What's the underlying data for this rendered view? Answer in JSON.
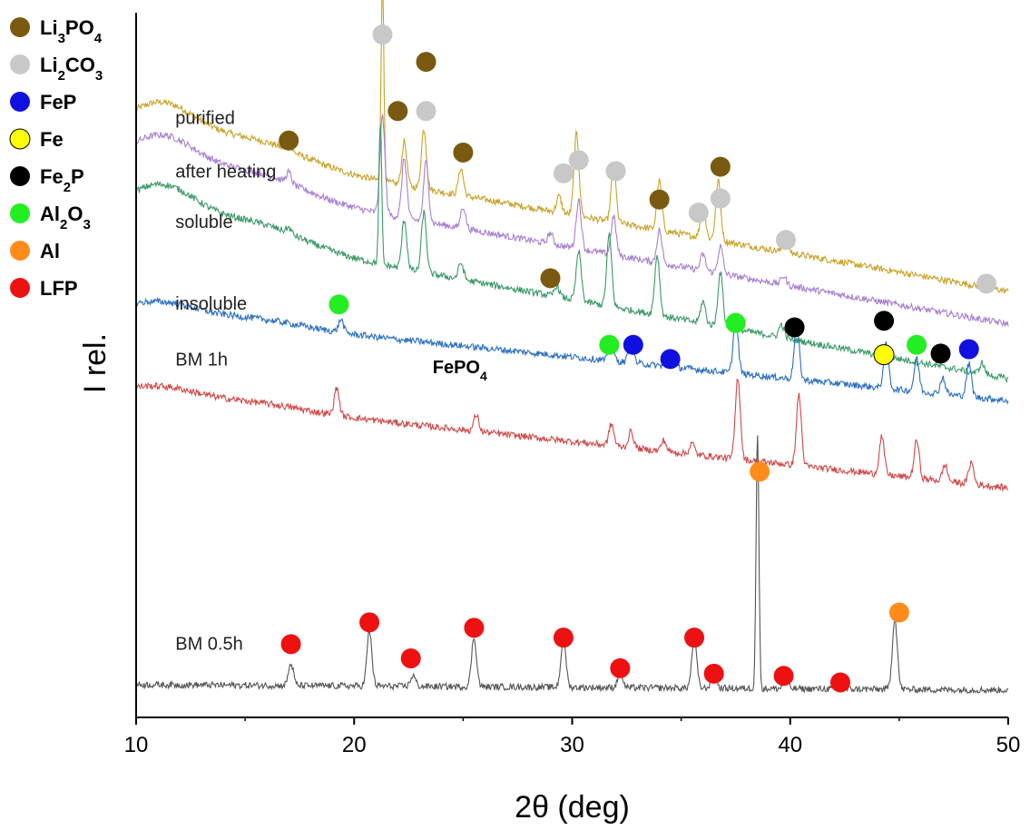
{
  "chart_data": {
    "type": "line",
    "title": "",
    "xlabel": "2θ (deg)",
    "ylabel": "I rel.",
    "xlim": [
      10,
      50
    ],
    "x_ticks": [
      10,
      20,
      30,
      40,
      50
    ],
    "y_ticks_shown": false,
    "grid": false,
    "legend_position": "top-left outside",
    "legend": [
      {
        "key": "Li3PO4",
        "base": "Li",
        "sub1": "3",
        "mid": "PO",
        "sub2": "4",
        "color": "#7a5a10"
      },
      {
        "key": "Li2CO3",
        "base": "Li",
        "sub1": "2",
        "mid": "CO",
        "sub2": "3",
        "color": "#c8c8c8"
      },
      {
        "key": "FeP",
        "base": "FeP",
        "sub1": "",
        "mid": "",
        "sub2": "",
        "color": "#1010e0"
      },
      {
        "key": "Fe",
        "base": "Fe",
        "sub1": "",
        "mid": "",
        "sub2": "",
        "color": "#ffff00"
      },
      {
        "key": "Fe2P",
        "base": "Fe",
        "sub1": "2",
        "mid": "P",
        "sub2": "",
        "color": "#000000"
      },
      {
        "key": "Al2O3",
        "base": "Al",
        "sub1": "2",
        "mid": "O",
        "sub2": "3",
        "color": "#22ee22"
      },
      {
        "key": "Al",
        "base": "Al",
        "sub1": "",
        "mid": "",
        "sub2": "",
        "color": "#ff8c1a"
      },
      {
        "key": "LFP",
        "base": "LFP",
        "sub1": "",
        "mid": "",
        "sub2": "",
        "color": "#ee1111"
      }
    ],
    "series": [
      {
        "name": "purified",
        "color": "#c9a227",
        "baseline": [
          1.6,
          0.2
        ],
        "hump": 0.35,
        "peaks": [
          [
            17.0,
            0.05
          ],
          [
            21.3,
            1.85
          ],
          [
            22.3,
            0.4
          ],
          [
            23.2,
            0.55
          ],
          [
            24.9,
            0.25
          ],
          [
            29.4,
            0.15
          ],
          [
            30.2,
            0.75
          ],
          [
            31.9,
            0.5
          ],
          [
            34.0,
            0.45
          ],
          [
            36.0,
            0.3
          ],
          [
            36.7,
            0.55
          ],
          [
            39.8,
            0.15
          ],
          [
            49.0,
            0.1
          ]
        ]
      },
      {
        "name": "after heating",
        "color": "#a97fd0",
        "baseline": [
          1.3,
          -0.1
        ],
        "hump": 0.35,
        "peaks": [
          [
            17.0,
            0.1
          ],
          [
            21.3,
            0.9
          ],
          [
            22.3,
            0.55
          ],
          [
            23.3,
            0.55
          ],
          [
            25.0,
            0.2
          ],
          [
            29.0,
            0.1
          ],
          [
            30.3,
            0.45
          ],
          [
            31.9,
            0.35
          ],
          [
            34.0,
            0.3
          ],
          [
            36.0,
            0.15
          ],
          [
            36.8,
            0.25
          ],
          [
            39.7,
            0.08
          ]
        ]
      },
      {
        "name": "soluble",
        "color": "#3a9a66",
        "baseline": [
          0.85,
          -0.6
        ],
        "hump": 0.35,
        "peaks": [
          [
            17.0,
            0.05
          ],
          [
            21.2,
            1.3
          ],
          [
            22.3,
            0.45
          ],
          [
            23.2,
            0.55
          ],
          [
            24.9,
            0.15
          ],
          [
            29.3,
            0.1
          ],
          [
            30.3,
            0.45
          ],
          [
            31.7,
            0.65
          ],
          [
            33.9,
            0.55
          ],
          [
            36.0,
            0.2
          ],
          [
            36.8,
            0.5
          ],
          [
            39.6,
            0.12
          ],
          [
            48.8,
            0.1
          ]
        ]
      },
      {
        "name": "insoluble",
        "color": "#2a6fc0",
        "baseline": [
          0.0,
          -0.8
        ],
        "hump": 0.12,
        "peaks": [
          [
            19.4,
            0.12
          ],
          [
            31.8,
            0.15
          ],
          [
            32.7,
            0.2
          ],
          [
            34.5,
            0.1
          ],
          [
            37.5,
            0.5
          ],
          [
            40.3,
            0.5
          ],
          [
            44.4,
            0.4
          ],
          [
            45.8,
            0.3
          ],
          [
            47.0,
            0.15
          ],
          [
            48.2,
            0.3
          ]
        ]
      },
      {
        "name": "BM 1h",
        "color": "#d04848",
        "baseline": [
          -0.75,
          -1.6
        ],
        "hump": 0.1,
        "peaks": [
          [
            19.2,
            0.25
          ],
          [
            25.6,
            0.15
          ],
          [
            31.8,
            0.2
          ],
          [
            32.7,
            0.15
          ],
          [
            34.2,
            0.1
          ],
          [
            35.5,
            0.1
          ],
          [
            37.6,
            0.75
          ],
          [
            40.4,
            0.65
          ],
          [
            44.2,
            0.35
          ],
          [
            45.8,
            0.35
          ],
          [
            47.1,
            0.15
          ],
          [
            48.3,
            0.2
          ]
        ]
      },
      {
        "name": "BM 0.5h",
        "color": "#555555",
        "baseline": [
          -3.4,
          -3.45
        ],
        "hump": 0.0,
        "peaks": [
          [
            17.1,
            0.2
          ],
          [
            20.7,
            0.5
          ],
          [
            22.7,
            0.1
          ],
          [
            25.5,
            0.45
          ],
          [
            29.6,
            0.45
          ],
          [
            32.2,
            0.15
          ],
          [
            35.6,
            0.45
          ],
          [
            36.5,
            0.15
          ],
          [
            38.5,
            2.35
          ],
          [
            39.8,
            0.08
          ],
          [
            42.3,
            0.08
          ],
          [
            44.8,
            0.65
          ]
        ]
      }
    ],
    "series_labels": [
      {
        "series": "purified",
        "x": 11.8,
        "y": 1.73
      },
      {
        "series": "after heating",
        "x": 11.8,
        "y": 1.24
      },
      {
        "series": "soluble",
        "x": 11.8,
        "y": 0.78
      },
      {
        "series": "insoluble",
        "x": 11.8,
        "y": 0.03
      },
      {
        "series": "BM 1h",
        "x": 11.8,
        "y": -0.48
      },
      {
        "series": "BM 0.5h",
        "x": 11.8,
        "y": -3.08
      }
    ],
    "annotations": [
      {
        "text": "FePO",
        "sub": "4",
        "x": 23.6,
        "y": -0.55
      }
    ],
    "markers": [
      {
        "phase": "Li2CO3",
        "x": 21.3,
        "y": 2.55
      },
      {
        "phase": "Li3PO4",
        "x": 17.0,
        "y": 1.58
      },
      {
        "phase": "Li3PO4",
        "x": 22.0,
        "y": 1.85
      },
      {
        "phase": "Li3PO4",
        "x": 23.3,
        "y": 2.3
      },
      {
        "phase": "Li2CO3",
        "x": 23.3,
        "y": 1.85
      },
      {
        "phase": "Li3PO4",
        "x": 25.0,
        "y": 1.47
      },
      {
        "phase": "Li2CO3",
        "x": 29.6,
        "y": 1.28
      },
      {
        "phase": "Li2CO3",
        "x": 30.3,
        "y": 1.4
      },
      {
        "phase": "Li2CO3",
        "x": 32.0,
        "y": 1.3
      },
      {
        "phase": "Li3PO4",
        "x": 34.0,
        "y": 1.04
      },
      {
        "phase": "Li2CO3",
        "x": 35.8,
        "y": 0.92
      },
      {
        "phase": "Li2CO3",
        "x": 36.8,
        "y": 1.05
      },
      {
        "phase": "Li3PO4",
        "x": 36.8,
        "y": 1.34
      },
      {
        "phase": "Li2CO3",
        "x": 39.8,
        "y": 0.67
      },
      {
        "phase": "Li2CO3",
        "x": 49.0,
        "y": 0.27
      },
      {
        "phase": "Li3PO4",
        "x": 29.0,
        "y": 0.32
      },
      {
        "phase": "Al2O3",
        "x": 19.3,
        "y": 0.08
      },
      {
        "phase": "Al2O3",
        "x": 31.7,
        "y": -0.29
      },
      {
        "phase": "FeP",
        "x": 32.8,
        "y": -0.29
      },
      {
        "phase": "FeP",
        "x": 34.5,
        "y": -0.42
      },
      {
        "phase": "Al2O3",
        "x": 37.5,
        "y": -0.09
      },
      {
        "phase": "Fe2P",
        "x": 40.2,
        "y": -0.13
      },
      {
        "phase": "Fe2P",
        "x": 44.3,
        "y": -0.07
      },
      {
        "phase": "Fe",
        "x": 44.3,
        "y": -0.38
      },
      {
        "phase": "Al2O3",
        "x": 45.8,
        "y": -0.29
      },
      {
        "phase": "Fe2P",
        "x": 46.9,
        "y": -0.37
      },
      {
        "phase": "FeP",
        "x": 48.2,
        "y": -0.33
      },
      {
        "phase": "Al",
        "x": 38.6,
        "y": -1.45
      },
      {
        "phase": "Al",
        "x": 45.0,
        "y": -2.74
      },
      {
        "phase": "LFP",
        "x": 17.1,
        "y": -3.03
      },
      {
        "phase": "LFP",
        "x": 20.7,
        "y": -2.83
      },
      {
        "phase": "LFP",
        "x": 22.6,
        "y": -3.16
      },
      {
        "phase": "LFP",
        "x": 25.5,
        "y": -2.88
      },
      {
        "phase": "LFP",
        "x": 29.6,
        "y": -2.97
      },
      {
        "phase": "LFP",
        "x": 32.2,
        "y": -3.25
      },
      {
        "phase": "LFP",
        "x": 35.6,
        "y": -2.97
      },
      {
        "phase": "LFP",
        "x": 36.5,
        "y": -3.3
      },
      {
        "phase": "LFP",
        "x": 39.7,
        "y": -3.32
      },
      {
        "phase": "LFP",
        "x": 42.3,
        "y": -3.38
      }
    ]
  }
}
